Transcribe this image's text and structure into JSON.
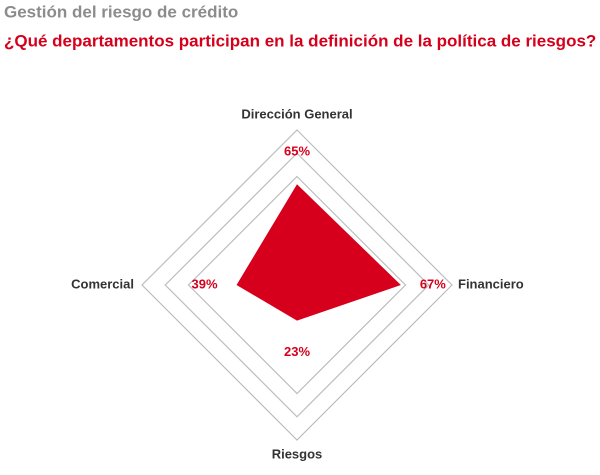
{
  "chart_data": {
    "type": "radar",
    "title": "Gestión del riesgo de crédito",
    "subtitle": "¿Qué departamentos participan en la definición de la política de riesgos?",
    "categories": [
      "Dirección General",
      "Financiero",
      "Riesgos",
      "Comercial"
    ],
    "values": [
      65,
      67,
      23,
      39
    ],
    "value_labels": [
      "65%",
      "67%",
      "23%",
      "39%"
    ],
    "color": "#d6001c",
    "ylim": [
      0,
      100
    ],
    "yticks": [
      70,
      85,
      100
    ],
    "grid": true
  }
}
